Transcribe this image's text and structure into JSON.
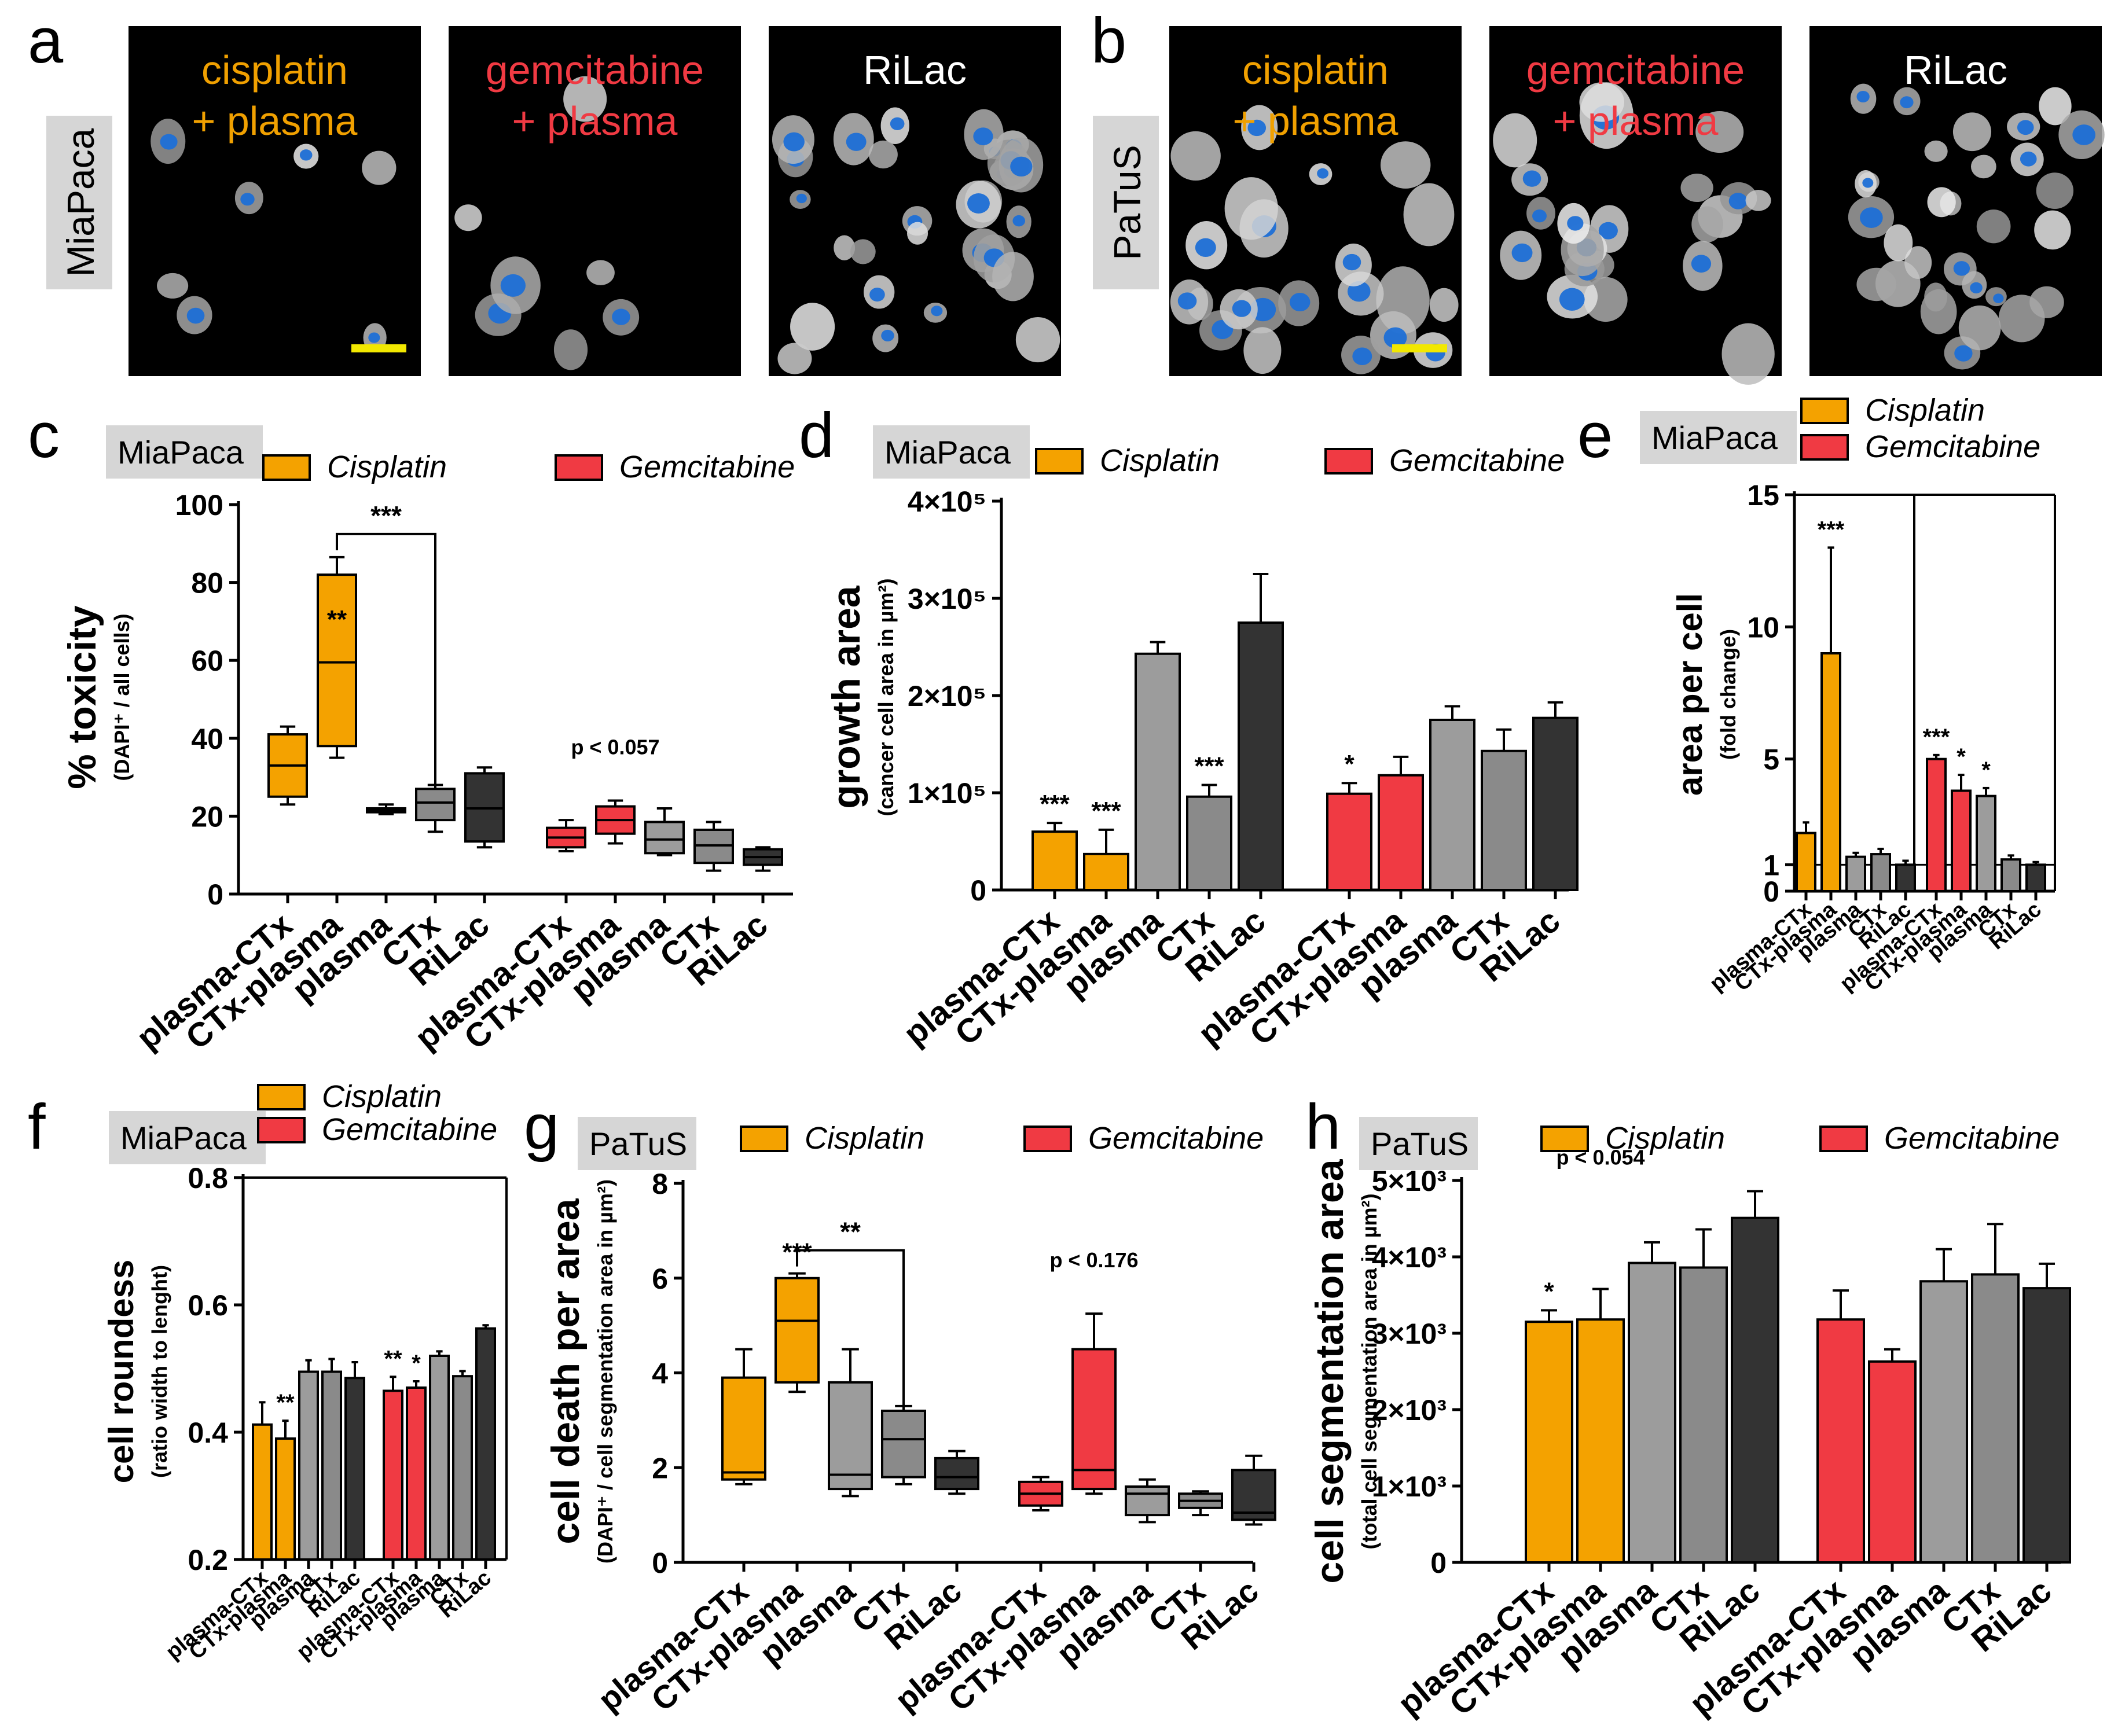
{
  "panel_letters": [
    "a",
    "b",
    "c",
    "d",
    "e",
    "f",
    "g",
    "h"
  ],
  "colors": {
    "cisplatin": "#f4a200",
    "gemcitabine": "#f03a43",
    "plasma": "#9c9c9c",
    "ctx": "#8a8a8a",
    "rilac": "#333333",
    "label_bg": "#d6d6d6",
    "scalebar": "#f2e800",
    "cis_text": "#f0a000",
    "gem_text": "#f03a43"
  },
  "micrographs": {
    "a": {
      "cell_line": "MiaPaca",
      "captions": [
        [
          "cisplatin",
          "+ plasma"
        ],
        [
          "gemcitabine",
          "+ plasma"
        ],
        [
          "RiLac"
        ]
      ]
    },
    "b": {
      "cell_line": "PaTuS",
      "captions": [
        [
          "cisplatin",
          "+ plasma"
        ],
        [
          "gemcitabine",
          "+ plasma"
        ],
        [
          "RiLac"
        ]
      ]
    }
  },
  "legend": {
    "cisplatin": "Cisplatin",
    "gemcitabine": "Gemcitabine"
  },
  "chart_data": [
    {
      "panel": "c",
      "type": "box",
      "cell_line": "MiaPaca",
      "ylabel": "% toxicity",
      "ylabel_sub": "(DAPI⁺ / all cells)",
      "ylim": [
        0,
        100
      ],
      "yticks": [
        0,
        20,
        40,
        60,
        80,
        100
      ],
      "ytick_labels": [
        "0",
        "20",
        "40",
        "60",
        "80",
        "100"
      ],
      "categories": [
        "plasma-CTx",
        "CTx-plasma",
        "plasma",
        "CTx",
        "RiLac"
      ],
      "series": [
        {
          "name": "Cisplatin",
          "boxes": [
            [
              23,
              25,
              33,
              41,
              43
            ],
            [
              35,
              38,
              59.5,
              82,
              86.5
            ],
            [
              20.5,
              21,
              21.5,
              22,
              23
            ],
            [
              16,
              19,
              23.5,
              27,
              28
            ],
            [
              12,
              13.5,
              22,
              31,
              32.5
            ]
          ]
        },
        {
          "name": "Gemcitabine",
          "boxes": [
            [
              11,
              12,
              14.5,
              17,
              19
            ],
            [
              13,
              15.5,
              19,
              22.5,
              24
            ],
            [
              10,
              10.5,
              14,
              18.5,
              22
            ],
            [
              6,
              8,
              12.5,
              16.5,
              18.5
            ],
            [
              6,
              7.5,
              9.5,
              11.5,
              12
            ]
          ]
        }
      ],
      "annotations": [
        {
          "text": "***",
          "kind": "bracket",
          "from": [
            0,
            1
          ],
          "to": [
            0,
            3
          ]
        },
        {
          "text": "**",
          "kind": "inbox",
          "at": [
            0,
            1
          ]
        },
        {
          "text": "p < 0.057",
          "kind": "above",
          "at": [
            1,
            1
          ]
        }
      ]
    },
    {
      "panel": "d",
      "type": "bar",
      "cell_line": "MiaPaca",
      "ylabel": "growth area",
      "ylabel_sub": "(cancer cell area in µm²)",
      "ylim": [
        0,
        400000
      ],
      "yticks": [
        0,
        100000,
        200000,
        300000,
        400000
      ],
      "ytick_labels": [
        "0",
        "1×10⁵",
        "2×10⁵",
        "3×10⁵",
        "4×10⁵"
      ],
      "categories": [
        "plasma-CTx",
        "CTx-plasma",
        "plasma",
        "CTx",
        "RiLac"
      ],
      "series": [
        {
          "name": "Cisplatin",
          "values": [
            60000,
            37000,
            243000,
            96000,
            275000
          ],
          "errors": [
            9000,
            25000,
            12000,
            12000,
            50000
          ],
          "stars": [
            "***",
            "***",
            "",
            "***",
            ""
          ]
        },
        {
          "name": "Gemcitabine",
          "values": [
            99000,
            118000,
            175000,
            143000,
            177000
          ],
          "errors": [
            11000,
            19000,
            14000,
            22000,
            16000
          ],
          "stars": [
            "*",
            "",
            "",
            "",
            ""
          ]
        }
      ]
    },
    {
      "panel": "e",
      "type": "bar",
      "cell_line": "MiaPaca",
      "ylabel": "area per cell",
      "ylabel_sub": "(fold change)",
      "ylim": [
        0,
        15
      ],
      "yticks": [
        0,
        1,
        5,
        10,
        15
      ],
      "ytick_labels": [
        "0",
        "1",
        "5",
        "10",
        "15"
      ],
      "categories": [
        "plasma-CTx",
        "CTx-plasma",
        "plasma",
        "CTx",
        "RiLac"
      ],
      "series": [
        {
          "name": "Cisplatin",
          "values": [
            2.2,
            9.0,
            1.3,
            1.4,
            1.0
          ],
          "errors": [
            0.4,
            4.0,
            0.15,
            0.2,
            0.15
          ],
          "stars": [
            "",
            "***",
            "",
            "",
            ""
          ]
        },
        {
          "name": "Gemcitabine",
          "values": [
            5.0,
            3.8,
            3.6,
            1.2,
            1.0
          ],
          "errors": [
            0.15,
            0.6,
            0.3,
            0.15,
            0.1
          ],
          "stars": [
            "***",
            "*",
            "*",
            "",
            ""
          ]
        }
      ]
    },
    {
      "panel": "f",
      "type": "bar",
      "cell_line": "MiaPaca",
      "ylabel": "cell roundess",
      "ylabel_sub": "(ratio width to lenght)",
      "ylim": [
        0.2,
        0.8
      ],
      "yticks": [
        0.2,
        0.4,
        0.6,
        0.8
      ],
      "ytick_labels": [
        "0.2",
        "0.4",
        "0.6",
        "0.8"
      ],
      "categories": [
        "plasma-CTx",
        "CTx-plasma",
        "plasma",
        "CTx",
        "RiLac"
      ],
      "series": [
        {
          "name": "Cisplatin",
          "values": [
            0.412,
            0.39,
            0.495,
            0.495,
            0.485
          ],
          "errors": [
            0.035,
            0.028,
            0.018,
            0.02,
            0.025
          ],
          "stars": [
            "",
            "**",
            "",
            "",
            ""
          ]
        },
        {
          "name": "Gemcitabine",
          "values": [
            0.465,
            0.47,
            0.52,
            0.488,
            0.563
          ],
          "errors": [
            0.022,
            0.01,
            0.007,
            0.008,
            0.005
          ],
          "stars": [
            "**",
            "*",
            "",
            "",
            ""
          ]
        }
      ]
    },
    {
      "panel": "g",
      "type": "box",
      "cell_line": "PaTuS",
      "ylabel": "cell death per area",
      "ylabel_sub": "(DAPI⁺ / cell segmentation area in µm²)",
      "ylim": [
        0,
        8
      ],
      "yticks": [
        0,
        2,
        4,
        6,
        8
      ],
      "ytick_labels": [
        "0",
        "2",
        "4",
        "6",
        "8"
      ],
      "categories": [
        "plasma-CTx",
        "CTx-plasma",
        "plasma",
        "CTx",
        "RiLac"
      ],
      "series": [
        {
          "name": "Cisplatin",
          "boxes": [
            [
              1.65,
              1.75,
              1.9,
              3.9,
              4.5
            ],
            [
              3.6,
              3.8,
              5.1,
              6.0,
              6.1
            ],
            [
              1.4,
              1.55,
              1.85,
              3.8,
              4.5
            ],
            [
              1.65,
              1.8,
              2.6,
              3.2,
              3.3
            ],
            [
              1.45,
              1.55,
              1.8,
              2.2,
              2.35
            ]
          ]
        },
        {
          "name": "Gemcitabine",
          "boxes": [
            [
              1.1,
              1.2,
              1.45,
              1.7,
              1.8
            ],
            [
              1.45,
              1.55,
              1.95,
              4.5,
              5.25
            ],
            [
              0.85,
              1.0,
              1.45,
              1.6,
              1.75
            ],
            [
              1.0,
              1.15,
              1.3,
              1.45,
              1.5
            ],
            [
              0.8,
              0.9,
              1.05,
              1.95,
              2.25
            ]
          ]
        }
      ],
      "annotations": [
        {
          "text": "**",
          "kind": "bracket",
          "from": [
            0,
            1
          ],
          "to": [
            0,
            3
          ]
        },
        {
          "text": "***",
          "kind": "above",
          "at": [
            0,
            1
          ]
        },
        {
          "text": "p < 0.176",
          "kind": "above",
          "at": [
            1,
            1
          ]
        }
      ]
    },
    {
      "panel": "h",
      "type": "bar",
      "cell_line": "PaTuS",
      "ylabel": "cell segmentation area",
      "ylabel_sub": "(total cell segmentation area in µm²)",
      "ylim": [
        0,
        5000
      ],
      "yticks": [
        0,
        1000,
        2000,
        3000,
        4000,
        5000
      ],
      "ytick_labels": [
        "0",
        "1×10³",
        "2×10³",
        "3×10³",
        "4×10³",
        "5×10³"
      ],
      "categories": [
        "plasma-CTx",
        "CTx-plasma",
        "plasma",
        "CTx",
        "RiLac"
      ],
      "series": [
        {
          "name": "Cisplatin",
          "values": [
            3150,
            3180,
            3920,
            3860,
            4510
          ],
          "errors": [
            150,
            400,
            270,
            500,
            350
          ],
          "stars": [
            "*",
            "",
            "",
            "",
            ""
          ]
        },
        {
          "name": "Gemcitabine",
          "values": [
            3180,
            2630,
            3680,
            3770,
            3590
          ],
          "errors": [
            380,
            160,
            420,
            660,
            320
          ],
          "stars": [
            "",
            "",
            "",
            "",
            ""
          ]
        }
      ],
      "annotations": [
        {
          "text": "p < 0.054",
          "kind": "above",
          "at": [
            0,
            1
          ]
        }
      ]
    }
  ]
}
